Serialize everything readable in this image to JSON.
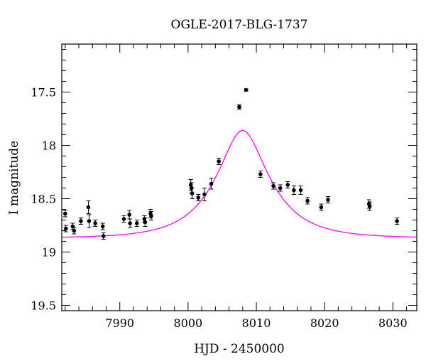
{
  "chart_data": {
    "type": "scatter",
    "title": "OGLE-2017-BLG-1737",
    "xlabel": "HJD - 2450000",
    "ylabel": "I magnitude",
    "xlim": [
      7981.5,
      8033.5
    ],
    "ylim": [
      19.55,
      17.05
    ],
    "y_inverted": true,
    "x_ticks": [
      7990,
      8000,
      8010,
      8020,
      8030
    ],
    "x_tick_labels": [
      "7990",
      "8000",
      "8010",
      "8020",
      "8030"
    ],
    "y_ticks": [
      17.5,
      18,
      18.5,
      19,
      19.5
    ],
    "y_tick_labels": [
      "17.5",
      "18",
      "18.5",
      "19",
      "19.5"
    ],
    "x_minor_step": 2,
    "y_minor_step": 0.1,
    "colors": {
      "data": "#000000",
      "model": "#ff00ff"
    },
    "series": [
      {
        "kind": "points",
        "x": [
          7982.0,
          7982.1,
          7983.1,
          7983.3,
          7984.3,
          7985.4,
          7985.5,
          7986.4,
          7987.5,
          7987.6,
          7990.6,
          7991.4,
          7991.5,
          7992.5,
          7993.6,
          7993.7,
          7994.5,
          7994.6,
          8000.4,
          8000.5,
          8000.6,
          8001.5,
          8002.4,
          8003.4,
          8004.5,
          8007.5,
          8008.5,
          8010.6,
          8012.5,
          8013.5,
          8014.6,
          8015.5,
          8016.5,
          8017.5,
          8019.5,
          8020.5,
          8026.5,
          8026.6,
          8030.6
        ],
        "y": [
          18.64,
          18.78,
          18.76,
          18.8,
          18.71,
          18.58,
          18.71,
          18.73,
          18.76,
          18.85,
          18.69,
          18.65,
          18.73,
          18.73,
          18.69,
          18.72,
          18.64,
          18.66,
          18.37,
          18.4,
          18.45,
          18.49,
          18.46,
          18.36,
          18.15,
          17.64,
          17.48,
          18.27,
          18.38,
          18.4,
          18.37,
          18.42,
          18.42,
          18.52,
          18.58,
          18.51,
          18.55,
          18.57,
          18.71
        ],
        "err": [
          0.03,
          0.03,
          0.03,
          0.03,
          0.03,
          0.06,
          0.06,
          0.03,
          0.03,
          0.03,
          0.03,
          0.04,
          0.04,
          0.03,
          0.03,
          0.04,
          0.04,
          0.04,
          0.05,
          0.05,
          0.05,
          0.03,
          0.06,
          0.05,
          0.03,
          0.02,
          0.01,
          0.03,
          0.03,
          0.03,
          0.03,
          0.04,
          0.04,
          0.03,
          0.03,
          0.03,
          0.04,
          0.04,
          0.03
        ]
      },
      {
        "kind": "model",
        "t0": 8008.0,
        "u0": 0.42,
        "tE": 7.2,
        "mag_base": 18.87
      }
    ]
  }
}
